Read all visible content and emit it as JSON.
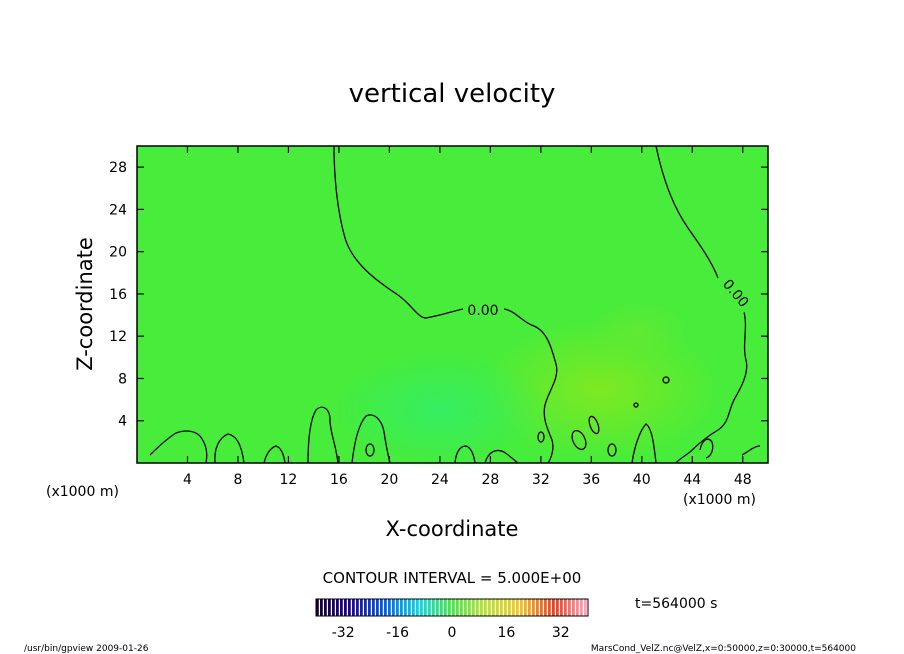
{
  "chart_data": {
    "type": "contour",
    "title": "vertical velocity",
    "xlabel": "X-coordinate",
    "ylabel": "Z-coordinate",
    "x_unit": "(x1000 m)",
    "y_unit": "(x1000 m)",
    "xlim": [
      0,
      50
    ],
    "ylim": [
      0,
      30
    ],
    "xticks": [
      "4",
      "8",
      "12",
      "16",
      "20",
      "24",
      "28",
      "32",
      "36",
      "40",
      "44",
      "48"
    ],
    "yticks": [
      "4",
      "8",
      "12",
      "16",
      "20",
      "24",
      "28"
    ],
    "contour_labels": [
      "0.00",
      "0.00"
    ],
    "contour_interval": "CONTOUR INTERVAL = 5.000E+00",
    "time_label": "t=564000 s",
    "colorbar": {
      "range": [
        -40,
        40
      ],
      "ticks": [
        "-32",
        "-16",
        "0",
        "16",
        "32"
      ],
      "background_value": 0
    },
    "footer_left": "/usr/bin/gpview   2009-01-26",
    "footer_right": "MarsCond_VelZ.nc@VelZ,x=0:50000,z=0:30000,t=564000"
  }
}
